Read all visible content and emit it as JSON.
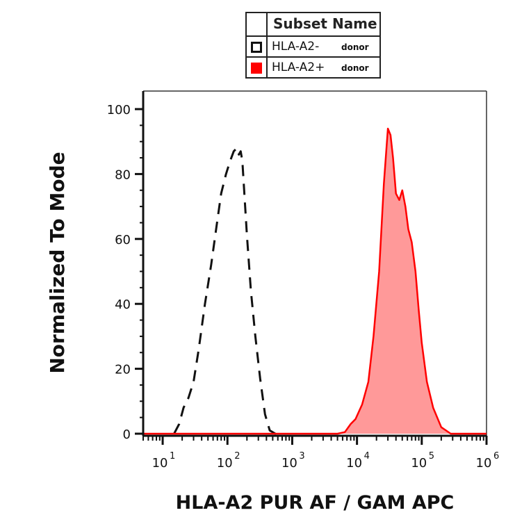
{
  "legend": {
    "title": "Subset Name",
    "items": [
      {
        "name": "HLA-A2-",
        "sub": "donor",
        "style": "dashed-outline",
        "color": "#111111"
      },
      {
        "name": "HLA-A2+",
        "sub": "donor",
        "style": "filled",
        "color": "#ff0000"
      }
    ]
  },
  "chart_data": {
    "type": "area",
    "xlabel": "HLA-A2 PUR AF / GAM APC",
    "ylabel": "Normalized To Mode",
    "x_scale": "log",
    "xlim": [
      5,
      1000000
    ],
    "ylim": [
      0,
      100
    ],
    "y_ticks": [
      0,
      20,
      40,
      60,
      80,
      100
    ],
    "x_ticks": [
      {
        "value": 10,
        "base": "10",
        "exp": "1"
      },
      {
        "value": 100,
        "base": "10",
        "exp": "2"
      },
      {
        "value": 1000,
        "base": "10",
        "exp": "3"
      },
      {
        "value": 10000,
        "base": "10",
        "exp": "4"
      },
      {
        "value": 100000,
        "base": "10",
        "exp": "5"
      },
      {
        "value": 1000000,
        "base": "10",
        "exp": "6"
      }
    ],
    "grid": false,
    "legend_position": "top-center",
    "series": [
      {
        "name": "HLA-A2- donor",
        "style": "dashed",
        "color": "#111111",
        "x": [
          15,
          18,
          21,
          25,
          30,
          36,
          45,
          56,
          68,
          80,
          95,
          110,
          125,
          140,
          150,
          160,
          170,
          180,
          200,
          230,
          270,
          320,
          380,
          450,
          550,
          650
        ],
        "y": [
          0,
          3,
          8,
          11,
          16,
          26,
          40,
          52,
          64,
          74,
          80,
          84,
          87,
          88,
          86,
          87,
          84,
          76,
          61,
          44,
          30,
          17,
          6,
          1,
          0,
          0
        ]
      },
      {
        "name": "HLA-A2+ donor",
        "style": "filled",
        "color": "#ff0000",
        "fill": "#ff9999",
        "x": [
          5,
          3000,
          5000,
          6500,
          8000,
          9500,
          12000,
          15000,
          18000,
          22000,
          26000,
          30000,
          33000,
          36000,
          40000,
          45000,
          50000,
          56000,
          62000,
          70000,
          80000,
          90000,
          100000,
          120000,
          150000,
          200000,
          280000,
          400000,
          1000000
        ],
        "y": [
          0,
          0,
          0,
          0.5,
          3,
          4.5,
          9,
          16,
          30,
          50,
          77,
          94,
          92,
          85,
          74,
          72,
          75,
          70,
          63,
          59,
          50,
          38,
          28,
          16,
          8,
          2,
          0,
          0,
          0
        ]
      }
    ]
  }
}
